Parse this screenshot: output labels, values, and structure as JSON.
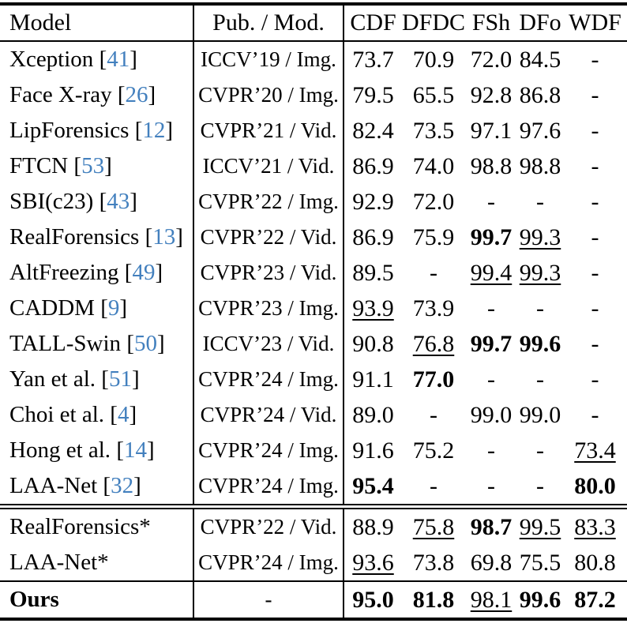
{
  "colors": {
    "cite_link": "#4380BE",
    "text": "#000000",
    "background": "#FFFFFF",
    "rules": "#000000"
  },
  "header": {
    "model": "Model",
    "pub": "Pub. / Mod.",
    "metrics": [
      "CDF",
      "DFDC",
      "FSh",
      "DFo",
      "WDF"
    ]
  },
  "sections": [
    {
      "name": "prior-work",
      "rows": [
        {
          "model": "Xception",
          "cite": "41",
          "pub": "ICCV’19 / Img.",
          "vals": [
            {
              "t": "73.7"
            },
            {
              "t": "70.9"
            },
            {
              "t": "72.0"
            },
            {
              "t": "84.5"
            },
            {
              "t": "-"
            }
          ]
        },
        {
          "model": "Face X-ray",
          "cite": "26",
          "pub": "CVPR’20 / Img.",
          "vals": [
            {
              "t": "79.5"
            },
            {
              "t": "65.5"
            },
            {
              "t": "92.8"
            },
            {
              "t": "86.8"
            },
            {
              "t": "-"
            }
          ]
        },
        {
          "model": "LipForensics",
          "cite": "12",
          "pub": "CVPR’21 / Vid.",
          "vals": [
            {
              "t": "82.4"
            },
            {
              "t": "73.5"
            },
            {
              "t": "97.1"
            },
            {
              "t": "97.6"
            },
            {
              "t": "-"
            }
          ]
        },
        {
          "model": "FTCN",
          "cite": "53",
          "pub": "ICCV’21 / Vid.",
          "vals": [
            {
              "t": "86.9"
            },
            {
              "t": "74.0"
            },
            {
              "t": "98.8"
            },
            {
              "t": "98.8"
            },
            {
              "t": "-"
            }
          ]
        },
        {
          "model": "SBI(c23)",
          "cite": "43",
          "pub": "CVPR’22 / Img.",
          "vals": [
            {
              "t": "92.9"
            },
            {
              "t": "72.0"
            },
            {
              "t": "-"
            },
            {
              "t": "-"
            },
            {
              "t": "-"
            }
          ]
        },
        {
          "model": "RealForensics",
          "cite": "13",
          "pub": "CVPR’22 / Vid.",
          "vals": [
            {
              "t": "86.9"
            },
            {
              "t": "75.9"
            },
            {
              "t": "99.7",
              "b": true
            },
            {
              "t": "99.3",
              "u": true
            },
            {
              "t": "-"
            }
          ]
        },
        {
          "model": "AltFreezing",
          "cite": "49",
          "pub": "CVPR’23 / Vid.",
          "vals": [
            {
              "t": "89.5"
            },
            {
              "t": "-"
            },
            {
              "t": "99.4",
              "u": true
            },
            {
              "t": "99.3",
              "u": true
            },
            {
              "t": "-"
            }
          ]
        },
        {
          "model": "CADDM",
          "cite": "9",
          "pub": "CVPR’23 / Img.",
          "vals": [
            {
              "t": "93.9",
              "u": true
            },
            {
              "t": "73.9"
            },
            {
              "t": "-"
            },
            {
              "t": "-"
            },
            {
              "t": "-"
            }
          ]
        },
        {
          "model": "TALL-Swin",
          "cite": "50",
          "pub": "ICCV’23 / Vid.",
          "vals": [
            {
              "t": "90.8"
            },
            {
              "t": "76.8",
              "u": true
            },
            {
              "t": "99.7",
              "b": true
            },
            {
              "t": "99.6",
              "b": true
            },
            {
              "t": "-"
            }
          ]
        },
        {
          "model": "Yan et al.",
          "cite": "51",
          "pub": "CVPR’24 / Img.",
          "vals": [
            {
              "t": "91.1"
            },
            {
              "t": "77.0",
              "b": true
            },
            {
              "t": "-"
            },
            {
              "t": "-"
            },
            {
              "t": "-"
            }
          ]
        },
        {
          "model": "Choi et al.",
          "cite": "4",
          "pub": "CVPR’24 / Vid.",
          "vals": [
            {
              "t": "89.0"
            },
            {
              "t": "-"
            },
            {
              "t": "99.0"
            },
            {
              "t": "99.0"
            },
            {
              "t": "-"
            }
          ]
        },
        {
          "model": "Hong et al.",
          "cite": "14",
          "pub": "CVPR’24 / Img.",
          "vals": [
            {
              "t": "91.6"
            },
            {
              "t": "75.2"
            },
            {
              "t": "-"
            },
            {
              "t": "-"
            },
            {
              "t": "73.4",
              "u": true
            }
          ]
        },
        {
          "model": "LAA-Net",
          "cite": "32",
          "pub": "CVPR’24 / Img.",
          "vals": [
            {
              "t": "95.4",
              "b": true
            },
            {
              "t": "-"
            },
            {
              "t": "-"
            },
            {
              "t": "-"
            },
            {
              "t": "80.0",
              "b": true
            }
          ]
        }
      ]
    },
    {
      "name": "reproduced",
      "rows": [
        {
          "model": "RealForensics*",
          "cite": null,
          "pub": "CVPR’22 / Vid.",
          "vals": [
            {
              "t": "88.9"
            },
            {
              "t": "75.8",
              "u": true
            },
            {
              "t": "98.7",
              "b": true
            },
            {
              "t": "99.5",
              "u": true
            },
            {
              "t": "83.3",
              "u": true
            }
          ]
        },
        {
          "model": "LAA-Net*",
          "cite": null,
          "pub": "CVPR’24 / Img.",
          "vals": [
            {
              "t": "93.6",
              "u": true
            },
            {
              "t": "73.8"
            },
            {
              "t": "69.8"
            },
            {
              "t": "75.5"
            },
            {
              "t": "80.8"
            }
          ]
        }
      ]
    },
    {
      "name": "ours",
      "rows": [
        {
          "model": "Ours",
          "bold": true,
          "cite": null,
          "pub": "-",
          "vals": [
            {
              "t": "95.0",
              "b": true
            },
            {
              "t": "81.8",
              "b": true
            },
            {
              "t": "98.1",
              "u": true
            },
            {
              "t": "99.6",
              "b": true
            },
            {
              "t": "87.2",
              "b": true
            }
          ]
        }
      ]
    }
  ]
}
